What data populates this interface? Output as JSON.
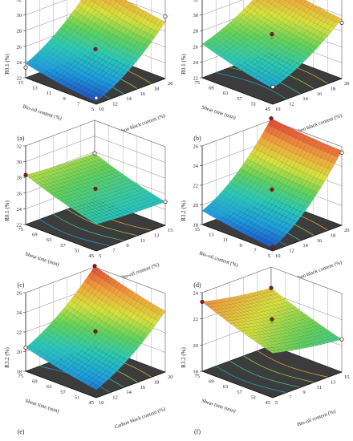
{
  "figure": {
    "background": "#ffffff",
    "surface_colors": [
      "#1f3fbf",
      "#1e9fe0",
      "#29c9b8",
      "#5fd35a",
      "#d8e23a",
      "#f2a23a",
      "#e2493a"
    ],
    "floor_color": "#3c3c3c",
    "marker_color": "#7a2020",
    "open_marker_color": "#ffffff"
  },
  "chart_data": [
    {
      "type": "surface",
      "panel": "(a)",
      "zlabel": "R0.1 (%)",
      "xlabel": "Carbon black content (%)",
      "ylabel": "Bio-oil content (%)",
      "x_ticks": [
        "10",
        "12",
        "14",
        "16",
        "18",
        "20"
      ],
      "y_ticks": [
        "5",
        "7",
        "9",
        "11",
        "13",
        "15"
      ],
      "z_ticks": [
        "22",
        "24",
        "26",
        "28",
        "30",
        "32"
      ],
      "xlim": [
        10,
        20
      ],
      "ylim": [
        5,
        15
      ],
      "zlim": [
        22,
        32
      ],
      "corners": {
        "x0y0": 22.3,
        "x1y0": 29.2,
        "x0y1": 23.8,
        "x1y1": 31.2
      },
      "curv_x": 0.8,
      "curv_y": 0.2,
      "points": [
        {
          "x": 20,
          "y": 15,
          "z": 31.2,
          "filled": true
        },
        {
          "x": 20,
          "y": 5,
          "z": 29.9,
          "filled": false
        },
        {
          "x": 15,
          "y": 10,
          "z": 25.7,
          "filled": true
        },
        {
          "x": 10,
          "y": 15,
          "z": 23.3,
          "filled": false
        },
        {
          "x": 10,
          "y": 5,
          "z": 22.8,
          "filled": false
        }
      ]
    },
    {
      "type": "surface",
      "panel": "(b)",
      "zlabel": "R0.1 (%)",
      "xlabel": "Carbon black content (%)",
      "ylabel": "Shear time (min)",
      "x_ticks": [
        "10",
        "12",
        "14",
        "16",
        "18",
        "20"
      ],
      "y_ticks": [
        "45",
        "51",
        "57",
        "63",
        "69",
        "75"
      ],
      "z_ticks": [
        "22",
        "24",
        "26",
        "28",
        "30",
        "32"
      ],
      "xlim": [
        10,
        20
      ],
      "ylim": [
        45,
        75
      ],
      "zlim": [
        22,
        32
      ],
      "corners": {
        "x0y0": 24.0,
        "x1y0": 29.6,
        "x0y1": 26.3,
        "x1y1": 31.3
      },
      "curv_x": 0.6,
      "curv_y": 0.2,
      "points": [
        {
          "x": 20,
          "y": 75,
          "z": 31.4,
          "filled": true
        },
        {
          "x": 20,
          "y": 45,
          "z": 29.1,
          "filled": false
        },
        {
          "x": 15,
          "y": 60,
          "z": 27.6,
          "filled": true
        },
        {
          "x": 10,
          "y": 45,
          "z": 24.2,
          "filled": false
        }
      ]
    },
    {
      "type": "surface",
      "panel": "(c)",
      "zlabel": "R0.1 (%)",
      "xlabel": "Bio-oil content (%)",
      "ylabel": "Shear time (min)",
      "x_ticks": [
        "5",
        "7",
        "9",
        "11",
        "13",
        "15"
      ],
      "y_ticks": [
        "45",
        "51",
        "57",
        "63",
        "69",
        "75"
      ],
      "z_ticks": [
        "22",
        "24",
        "26",
        "28",
        "30",
        "32"
      ],
      "xlim": [
        5,
        15
      ],
      "ylim": [
        45,
        75
      ],
      "zlim": [
        22,
        32
      ],
      "corners": {
        "x0y0": 25.4,
        "x1y0": 25.0,
        "x0y1": 28.3,
        "x1y1": 27.8
      },
      "curv_x": 0.1,
      "curv_y": 0.2,
      "points": [
        {
          "x": 5,
          "y": 75,
          "z": 28.3,
          "filled": true
        },
        {
          "x": 10,
          "y": 60,
          "z": 26.6,
          "filled": true
        },
        {
          "x": 15,
          "y": 45,
          "z": 25.0,
          "filled": false
        },
        {
          "x": 15,
          "y": 75,
          "z": 27.8,
          "filled": false
        }
      ]
    },
    {
      "type": "surface",
      "panel": "(d)",
      "zlabel": "R3.2 (%)",
      "xlabel": "Carbon black content (%)",
      "ylabel": "Bio-oil content (%)",
      "x_ticks": [
        "10",
        "12",
        "14",
        "16",
        "18",
        "20"
      ],
      "y_ticks": [
        "5",
        "7",
        "9",
        "11",
        "13",
        "15"
      ],
      "z_ticks": [
        "18",
        "20",
        "22",
        "24",
        "26"
      ],
      "xlim": [
        10,
        20
      ],
      "ylim": [
        5,
        15
      ],
      "zlim": [
        18,
        26
      ],
      "corners": {
        "x0y0": 18.3,
        "x1y0": 25.6,
        "x0y1": 19.4,
        "x1y1": 26.2
      },
      "curv_x": 0.9,
      "curv_y": 0.1,
      "points": [
        {
          "x": 20,
          "y": 15,
          "z": 26.2,
          "filled": true
        },
        {
          "x": 20,
          "y": 5,
          "z": 25.4,
          "filled": false
        },
        {
          "x": 15,
          "y": 10,
          "z": 21.6,
          "filled": true
        },
        {
          "x": 10,
          "y": 5,
          "z": 18.4,
          "filled": true
        }
      ]
    },
    {
      "type": "surface",
      "panel": "(e)",
      "zlabel": "R3.2 (%)",
      "xlabel": "Carbon black content (%)",
      "ylabel": "Shear time (min)",
      "x_ticks": [
        "10",
        "12",
        "14",
        "16",
        "18",
        "20"
      ],
      "y_ticks": [
        "45",
        "51",
        "57",
        "63",
        "69",
        "75"
      ],
      "z_ticks": [
        "18",
        "20",
        "22",
        "24",
        "26"
      ],
      "xlim": [
        10,
        20
      ],
      "ylim": [
        45,
        75
      ],
      "zlim": [
        18,
        26
      ],
      "corners": {
        "x0y0": 18.8,
        "x1y0": 24.2,
        "x0y1": 20.4,
        "x1y1": 26.1
      },
      "curv_x": 0.6,
      "curv_y": 0.1,
      "points": [
        {
          "x": 20,
          "y": 75,
          "z": 26.1,
          "filled": true
        },
        {
          "x": 15,
          "y": 60,
          "z": 22.1,
          "filled": true
        },
        {
          "x": 10,
          "y": 75,
          "z": 20.4,
          "filled": false
        }
      ]
    },
    {
      "type": "surface",
      "panel": "(f)",
      "zlabel": "R3.2 (%)",
      "xlabel": "Bio-oil content (%)",
      "ylabel": "Shear time (min)",
      "x_ticks": [
        "5",
        "7",
        "9",
        "11",
        "13",
        "15"
      ],
      "y_ticks": [
        "45",
        "51",
        "57",
        "63",
        "69",
        "75"
      ],
      "z_ticks": [
        "18",
        "20",
        "22",
        "24"
      ],
      "xlim": [
        5,
        15
      ],
      "ylim": [
        45,
        75
      ],
      "zlim": [
        18,
        24
      ],
      "corners": {
        "x0y0": 21.4,
        "x1y0": 20.5,
        "x0y1": 23.3,
        "x1y1": 22.4
      },
      "curv_x": 0.1,
      "curv_y": 0.1,
      "points": [
        {
          "x": 5,
          "y": 75,
          "z": 23.3,
          "filled": true
        },
        {
          "x": 10,
          "y": 60,
          "z": 22.0,
          "filled": true
        },
        {
          "x": 15,
          "y": 45,
          "z": 20.5,
          "filled": false
        },
        {
          "x": 15,
          "y": 75,
          "z": 22.4,
          "filled": true
        }
      ]
    }
  ]
}
